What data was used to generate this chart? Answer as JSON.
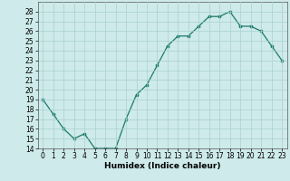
{
  "x": [
    0,
    1,
    2,
    3,
    4,
    5,
    6,
    7,
    8,
    9,
    10,
    11,
    12,
    13,
    14,
    15,
    16,
    17,
    18,
    19,
    20,
    21,
    22,
    23
  ],
  "y": [
    19,
    17.5,
    16,
    15,
    15.5,
    14,
    14,
    14,
    17,
    19.5,
    20.5,
    22.5,
    24.5,
    25.5,
    25.5,
    26.5,
    27.5,
    27.5,
    28,
    26.5,
    26.5,
    26,
    24.5,
    23
  ],
  "xlabel": "Humidex (Indice chaleur)",
  "ylim": [
    14,
    29
  ],
  "xlim": [
    -0.5,
    23.5
  ],
  "yticks": [
    14,
    15,
    16,
    17,
    18,
    19,
    20,
    21,
    22,
    23,
    24,
    25,
    26,
    27,
    28
  ],
  "xticks": [
    0,
    1,
    2,
    3,
    4,
    5,
    6,
    7,
    8,
    9,
    10,
    11,
    12,
    13,
    14,
    15,
    16,
    17,
    18,
    19,
    20,
    21,
    22,
    23
  ],
  "line_color": "#1a7a6a",
  "marker_color": "#1a7a6a",
  "bg_color": "#ceeaea",
  "grid_color": "#aacfcf",
  "label_fontsize": 6.5,
  "tick_fontsize": 5.5
}
